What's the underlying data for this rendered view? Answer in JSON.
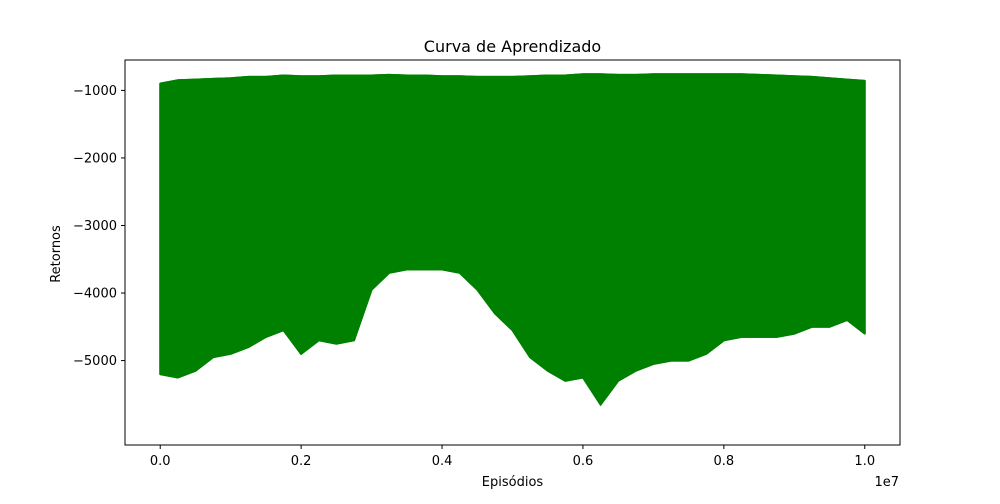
{
  "chart_data": {
    "type": "line",
    "title": "Curva de Aprendizado",
    "xlabel": "Episódios",
    "ylabel": "Retornos",
    "x_offset_label": "1e7",
    "xlim": [
      -0.05,
      1.05
    ],
    "ylim": [
      -6250,
      -550
    ],
    "x_ticks": [
      0.0,
      0.2,
      0.4,
      0.6,
      0.8,
      1.0
    ],
    "x_tick_labels": [
      "0.0",
      "0.2",
      "0.4",
      "0.6",
      "0.8",
      "1.0"
    ],
    "y_ticks": [
      -5000,
      -4000,
      -3000,
      -2000,
      -1000
    ],
    "y_tick_labels": [
      "−5000",
      "−4000",
      "−3000",
      "−2000",
      "−1000"
    ],
    "grid": false,
    "colors": {
      "line": "#008000"
    },
    "series": [
      {
        "x": [
          0.0,
          0.025,
          0.05,
          0.075,
          0.1,
          0.125,
          0.15,
          0.175,
          0.2,
          0.225,
          0.25,
          0.275,
          0.3,
          0.325,
          0.35,
          0.375,
          0.4,
          0.425,
          0.45,
          0.475,
          0.5,
          0.525,
          0.55,
          0.575,
          0.6,
          0.625,
          0.65,
          0.675,
          0.7,
          0.725,
          0.75,
          0.775,
          0.8,
          0.825,
          0.85,
          0.875,
          0.9,
          0.925,
          0.95,
          0.975,
          1.0
        ],
        "upper": [
          -900,
          -850,
          -840,
          -830,
          -820,
          -800,
          -800,
          -780,
          -790,
          -790,
          -780,
          -780,
          -780,
          -770,
          -780,
          -780,
          -790,
          -790,
          -800,
          -800,
          -800,
          -790,
          -780,
          -780,
          -760,
          -760,
          -770,
          -770,
          -760,
          -760,
          -760,
          -760,
          -760,
          -760,
          -770,
          -780,
          -790,
          -800,
          -820,
          -840,
          -860
        ],
        "lower": [
          -5200,
          -5250,
          -5150,
          -4950,
          -4900,
          -4800,
          -4650,
          -4550,
          -4900,
          -4700,
          -4750,
          -4700,
          -3950,
          -3700,
          -3650,
          -3650,
          -3650,
          -3700,
          -3950,
          -4300,
          -4550,
          -4950,
          -5150,
          -5300,
          -5250,
          -5650,
          -5300,
          -5150,
          -5050,
          -5000,
          -5000,
          -4900,
          -4700,
          -4650,
          -4650,
          -4650,
          -4600,
          -4500,
          -4500,
          -4400,
          -4600
        ]
      }
    ]
  }
}
